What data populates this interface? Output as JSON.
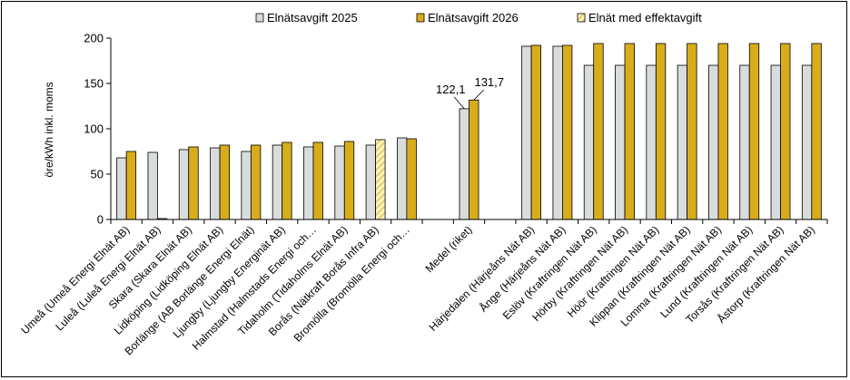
{
  "chart_data": {
    "type": "bar",
    "title": "",
    "xlabel": "",
    "ylabel": "öre/kWh inkl. moms",
    "ylim": [
      0,
      200
    ],
    "yticks": [
      0,
      50,
      100,
      150,
      200
    ],
    "grid": false,
    "legend_position": "top",
    "categories": [
      "Umeå (Umeå Energi Elnät AB)",
      "Luleå (Luleå Energi Elnät AB)",
      "Skara (Skara Elnät AB)",
      "Lidköping (Lidköping Elnät AB)",
      "Borlänge (AB Borlänge Energi Elnät)",
      "Ljungby (Ljungby Energinät AB)",
      "Halmstad (Halmstads Energi och…",
      "Tidaholm (Tidaholms Elnät AB)",
      "Borås (Nätkraft Borås Infra AB)",
      "Bromölla (Bromölla Energi och…",
      "",
      "Medel (riket)",
      "",
      "Härjedalen (Härjeåns Nät AB)",
      "Ånge (Härjeåns Nät AB)",
      "Eslöv (Kraftringen Nät AB)",
      "Hörby (Kraftringen Nät AB)",
      "Höör (Kraftringen Nät AB)",
      "Klippan (Kraftringen Nät AB)",
      "Lomma (Kraftringen Nät AB)",
      "Lund (Kraftringen Nät AB)",
      "Torsås (Kraftringen Nät AB)",
      "Åstorp (Kraftringen Nät AB)"
    ],
    "series": [
      {
        "name": "Elnätsavgift 2025",
        "color": "#d9dcdc",
        "values": [
          68,
          74,
          77,
          79,
          75,
          82,
          80,
          81,
          82,
          90,
          null,
          122.1,
          null,
          191,
          191,
          170,
          170,
          170,
          170,
          170,
          170,
          170,
          170
        ]
      },
      {
        "name": "Elnätsavgift 2026",
        "color": "#d8ad1c",
        "values": [
          75,
          1,
          80,
          82,
          82,
          85,
          85,
          86,
          null,
          89,
          null,
          131.7,
          null,
          192,
          192,
          194,
          194,
          194,
          194,
          194,
          194,
          194,
          194
        ]
      },
      {
        "name": "Elnät med effektavgift",
        "color": "#fbf2b8",
        "pattern": "diagonal-hatch",
        "values": [
          null,
          null,
          null,
          null,
          null,
          null,
          null,
          null,
          88,
          null,
          null,
          null,
          null,
          null,
          null,
          null,
          null,
          null,
          null,
          null,
          null,
          null,
          null
        ]
      }
    ],
    "data_labels": [
      {
        "category_index": 11,
        "series_index": 0,
        "text": "122,1"
      },
      {
        "category_index": 11,
        "series_index": 1,
        "text": "131,7"
      }
    ]
  }
}
